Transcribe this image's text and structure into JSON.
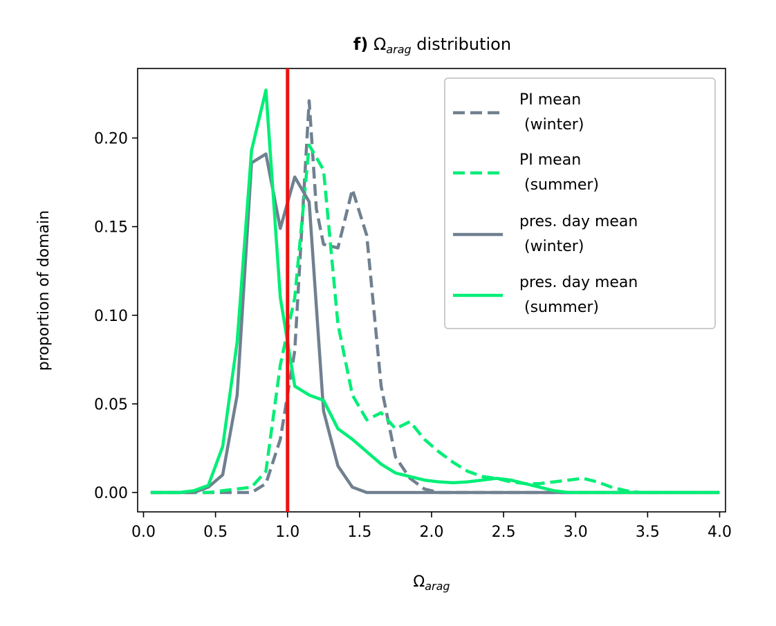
{
  "chart_data": {
    "type": "line",
    "title": {
      "panel": "f)",
      "symbol": "Ω",
      "subscript": "arag",
      "rest": " distribution"
    },
    "xlabel": {
      "symbol": "Ω",
      "subscript": "arag"
    },
    "ylabel": "proportion of domain",
    "xlim": [
      0.0,
      4.0
    ],
    "ylim": [
      -0.011,
      0.24
    ],
    "xticks": [
      "0.0",
      "0.5",
      "1.0",
      "1.5",
      "2.0",
      "2.5",
      "3.0",
      "3.5",
      "4.0"
    ],
    "yticks": [
      "0.00",
      "0.05",
      "0.10",
      "0.15",
      "0.20"
    ],
    "grid": false,
    "legend_position": "top-right",
    "reference_line": {
      "x": 1.0,
      "color": "#ee1111"
    },
    "series": [
      {
        "name": "PI mean\n (winter)",
        "color": "#708090",
        "dash": true,
        "x": [
          0.05,
          0.15,
          0.25,
          0.35,
          0.45,
          0.55,
          0.65,
          0.75,
          0.85,
          0.95,
          1.05,
          1.15,
          1.2,
          1.25,
          1.35,
          1.45,
          1.55,
          1.65,
          1.75,
          1.85,
          1.95,
          2.05,
          2.15,
          2.25,
          2.5,
          3.0,
          3.5,
          4.0
        ],
        "y": [
          0.0,
          0.0,
          0.0,
          0.0,
          0.0,
          0.0,
          0.0,
          0.0,
          0.005,
          0.03,
          0.08,
          0.221,
          0.16,
          0.14,
          0.138,
          0.171,
          0.145,
          0.06,
          0.02,
          0.008,
          0.002,
          0.0,
          0.0,
          0.0,
          0.0,
          0.0,
          0.0,
          0.0
        ]
      },
      {
        "name": "PI mean\n (summer)",
        "color": "#00ee76",
        "dash": true,
        "x": [
          0.05,
          0.15,
          0.25,
          0.35,
          0.45,
          0.55,
          0.65,
          0.75,
          0.85,
          0.95,
          1.05,
          1.15,
          1.25,
          1.35,
          1.45,
          1.55,
          1.65,
          1.75,
          1.85,
          1.95,
          2.05,
          2.15,
          2.25,
          2.35,
          2.45,
          2.55,
          2.65,
          2.75,
          2.85,
          2.95,
          3.05,
          3.15,
          3.25,
          3.35,
          3.45,
          3.55,
          4.0
        ],
        "y": [
          0.0,
          0.0,
          0.0,
          0.0,
          0.0,
          0.001,
          0.002,
          0.003,
          0.012,
          0.072,
          0.11,
          0.196,
          0.182,
          0.095,
          0.055,
          0.041,
          0.045,
          0.036,
          0.04,
          0.03,
          0.023,
          0.017,
          0.012,
          0.009,
          0.008,
          0.006,
          0.005,
          0.005,
          0.006,
          0.007,
          0.008,
          0.006,
          0.003,
          0.001,
          0.0,
          0.0,
          0.0
        ]
      },
      {
        "name": "pres. day mean\n (winter)",
        "color": "#708090",
        "dash": false,
        "x": [
          0.05,
          0.15,
          0.25,
          0.35,
          0.45,
          0.55,
          0.65,
          0.75,
          0.85,
          0.95,
          1.05,
          1.15,
          1.25,
          1.35,
          1.45,
          1.55,
          1.65,
          1.75,
          1.85,
          2.0,
          2.5,
          3.0,
          3.5,
          4.0
        ],
        "y": [
          0.0,
          0.0,
          0.0,
          0.0,
          0.003,
          0.01,
          0.055,
          0.186,
          0.191,
          0.149,
          0.178,
          0.164,
          0.046,
          0.015,
          0.003,
          0.0,
          0.0,
          0.0,
          0.0,
          0.0,
          0.0,
          0.0,
          0.0,
          0.0
        ]
      },
      {
        "name": "pres. day mean\n (summer)",
        "color": "#00ee76",
        "dash": false,
        "x": [
          0.05,
          0.15,
          0.25,
          0.35,
          0.45,
          0.55,
          0.65,
          0.75,
          0.85,
          0.95,
          1.05,
          1.15,
          1.25,
          1.35,
          1.45,
          1.55,
          1.65,
          1.75,
          1.85,
          1.95,
          2.05,
          2.15,
          2.25,
          2.35,
          2.45,
          2.55,
          2.65,
          2.75,
          2.85,
          2.95,
          3.05,
          3.5,
          4.0
        ],
        "y": [
          0.0,
          0.0,
          0.0,
          0.001,
          0.004,
          0.026,
          0.085,
          0.193,
          0.227,
          0.11,
          0.06,
          0.055,
          0.052,
          0.036,
          0.03,
          0.023,
          0.016,
          0.011,
          0.009,
          0.007,
          0.006,
          0.0055,
          0.006,
          0.007,
          0.008,
          0.007,
          0.005,
          0.003,
          0.001,
          0.0,
          0.0,
          0.0,
          0.0
        ]
      }
    ]
  }
}
